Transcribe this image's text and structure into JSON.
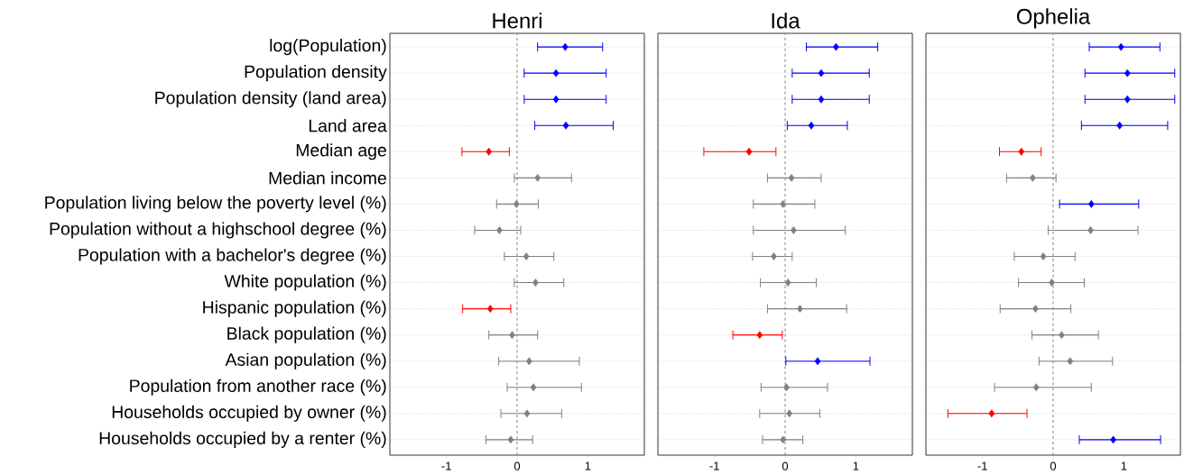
{
  "chart_data": [
    {
      "type": "scatter",
      "title": "Henri",
      "orientation": "horizontal",
      "marker": "diamond",
      "grid": "y",
      "xlim": [
        -1.8,
        1.8
      ],
      "xticks": [
        -1,
        0,
        1
      ],
      "categories": [
        "log(Population)",
        "Population density",
        "Population density (land area)",
        "Land area",
        "Median age",
        "Median income",
        "Population living below the poverty level (%)",
        "Population without a highschool degree (%)",
        "Population with a bachelor's degree (%)",
        "White population (%)",
        "Hispanic population (%)",
        "Black population (%)",
        "Asian population (%)",
        "Population from another race (%)",
        "Households occupied by owner (%)",
        "Households occupied by a renter (%)"
      ],
      "values": [
        0.68,
        0.55,
        0.55,
        0.69,
        -0.4,
        0.29,
        -0.01,
        -0.25,
        0.13,
        0.26,
        -0.38,
        -0.07,
        0.17,
        0.23,
        0.14,
        -0.09
      ],
      "errors": [
        [
          0.29,
          1.21
        ],
        [
          0.1,
          1.26
        ],
        [
          0.1,
          1.26
        ],
        [
          0.25,
          1.36
        ],
        [
          -0.78,
          -0.11
        ],
        [
          -0.04,
          0.77
        ],
        [
          -0.29,
          0.3
        ],
        [
          -0.6,
          0.05
        ],
        [
          -0.18,
          0.52
        ],
        [
          -0.04,
          0.66
        ],
        [
          -0.77,
          -0.09
        ],
        [
          -0.4,
          0.29
        ],
        [
          -0.26,
          0.88
        ],
        [
          -0.14,
          0.91
        ],
        [
          -0.23,
          0.63
        ],
        [
          -0.44,
          0.22
        ]
      ],
      "colors": [
        "#0000ff",
        "#0000ff",
        "#0000ff",
        "#0000ff",
        "#ff0000",
        "#808080",
        "#808080",
        "#808080",
        "#808080",
        "#808080",
        "#ff0000",
        "#808080",
        "#808080",
        "#808080",
        "#808080",
        "#808080"
      ],
      "ref_lines": [
        {
          "axis": "x",
          "value": 0,
          "color": "#808080",
          "line_style": "dashed"
        }
      ]
    },
    {
      "type": "scatter",
      "title": "Ida",
      "orientation": "horizontal",
      "marker": "diamond",
      "grid": "y",
      "xlim": [
        -1.8,
        1.8
      ],
      "xticks": [
        -1,
        0,
        1
      ],
      "tick_labels": "x",
      "categories": [
        null,
        null,
        null,
        null,
        null,
        null,
        null,
        null,
        null,
        null,
        null,
        null,
        null,
        null,
        null,
        null
      ],
      "values": [
        0.72,
        0.51,
        0.51,
        0.37,
        -0.51,
        0.09,
        -0.03,
        0.12,
        -0.16,
        0.04,
        0.21,
        -0.36,
        0.46,
        0.02,
        0.06,
        -0.03
      ],
      "errors": [
        [
          0.3,
          1.31
        ],
        [
          0.1,
          1.19
        ],
        [
          0.1,
          1.19
        ],
        [
          0.03,
          0.88
        ],
        [
          -1.15,
          -0.13
        ],
        [
          -0.25,
          0.51
        ],
        [
          -0.45,
          0.42
        ],
        [
          -0.45,
          0.85
        ],
        [
          -0.46,
          0.1
        ],
        [
          -0.35,
          0.44
        ],
        [
          -0.25,
          0.87
        ],
        [
          -0.74,
          -0.04
        ],
        [
          0.01,
          1.2
        ],
        [
          -0.34,
          0.6
        ],
        [
          -0.36,
          0.49
        ],
        [
          -0.32,
          0.25
        ]
      ],
      "colors": [
        "#0000ff",
        "#0000ff",
        "#0000ff",
        "#0000ff",
        "#ff0000",
        "#808080",
        "#808080",
        "#808080",
        "#808080",
        "#808080",
        "#808080",
        "#ff0000",
        "#0000ff",
        "#808080",
        "#808080",
        "#808080"
      ],
      "ref_lines": [
        {
          "axis": "x",
          "value": 0,
          "color": "#808080",
          "line_style": "dashed"
        }
      ]
    },
    {
      "type": "scatter",
      "title": "Ophelia",
      "orientation": "horizontal",
      "marker": "diamond",
      "grid": "y",
      "xlim": [
        -1.8,
        1.8
      ],
      "xticks": [
        -1,
        0,
        1
      ],
      "tick_labels": "x",
      "categories": [
        null,
        null,
        null,
        null,
        null,
        null,
        null,
        null,
        null,
        null,
        null,
        null,
        null,
        null,
        null,
        null
      ],
      "values": [
        0.96,
        1.05,
        1.05,
        0.94,
        -0.45,
        -0.29,
        0.54,
        0.53,
        -0.14,
        -0.02,
        -0.25,
        0.12,
        0.24,
        -0.24,
        -0.87,
        0.85
      ],
      "errors": [
        [
          0.51,
          1.51
        ],
        [
          0.45,
          1.72
        ],
        [
          0.45,
          1.72
        ],
        [
          0.4,
          1.62
        ],
        [
          -0.76,
          -0.17
        ],
        [
          -0.66,
          0.04
        ],
        [
          0.09,
          1.21
        ],
        [
          -0.07,
          1.2
        ],
        [
          -0.55,
          0.31
        ],
        [
          -0.49,
          0.44
        ],
        [
          -0.75,
          0.25
        ],
        [
          -0.3,
          0.64
        ],
        [
          -0.2,
          0.84
        ],
        [
          -0.83,
          0.54
        ],
        [
          -1.49,
          -0.37
        ],
        [
          0.37,
          1.52
        ]
      ],
      "colors": [
        "#0000ff",
        "#0000ff",
        "#0000ff",
        "#0000ff",
        "#ff0000",
        "#808080",
        "#0000ff",
        "#808080",
        "#808080",
        "#808080",
        "#808080",
        "#808080",
        "#808080",
        "#808080",
        "#ff0000",
        "#0000ff"
      ],
      "ref_lines": [
        {
          "axis": "x",
          "value": 0,
          "color": "#808080",
          "line_style": "dashed"
        }
      ]
    }
  ]
}
